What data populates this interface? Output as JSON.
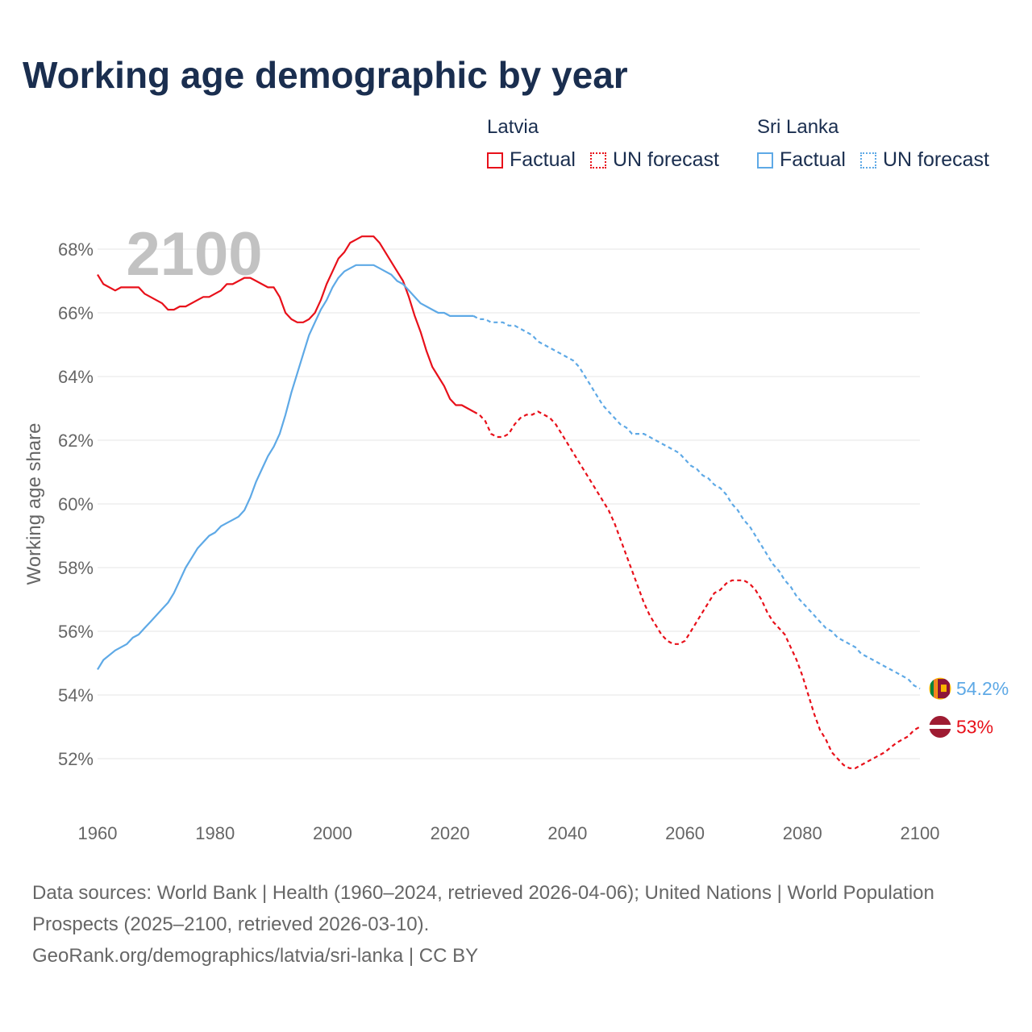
{
  "title": "Working age demographic by year",
  "year_label": "2100",
  "legend": {
    "groups": [
      {
        "country": "Latvia",
        "factual_label": "Factual",
        "forecast_label": "UN forecast",
        "color": "#e8101a"
      },
      {
        "country": "Sri Lanka",
        "factual_label": "Factual",
        "forecast_label": "UN forecast",
        "color": "#5ea9e6"
      }
    ]
  },
  "footer": {
    "sources": "Data sources: World Bank | Health (1960–2024, retrieved 2026-04-06); United Nations | World Population Prospects (2025–2100, retrieved 2026-03-10).",
    "credit": "GeoRank.org/demographics/latvia/sri-lanka | CC BY"
  },
  "chart_data": {
    "type": "line",
    "title": "Working age demographic by year",
    "ylabel": "Working age share",
    "xlabel": "",
    "xlim": [
      1960,
      2100
    ],
    "ylim": [
      51,
      69.5
    ],
    "x_ticks": [
      "1960",
      "1980",
      "2000",
      "2020",
      "2040",
      "2060",
      "2080",
      "2100"
    ],
    "y_ticks": [
      "52%",
      "54%",
      "56%",
      "58%",
      "60%",
      "62%",
      "64%",
      "66%",
      "68%"
    ],
    "grid": true,
    "factual_end_year": 2024,
    "series": [
      {
        "name": "Latvia",
        "color": "#e8101a",
        "end_label": "53%",
        "points": [
          [
            1960,
            67.2
          ],
          [
            1961,
            66.9
          ],
          [
            1963,
            66.7
          ],
          [
            1964,
            66.8
          ],
          [
            1967,
            66.8
          ],
          [
            1968,
            66.6
          ],
          [
            1971,
            66.3
          ],
          [
            1972,
            66.1
          ],
          [
            1973,
            66.1
          ],
          [
            1974,
            66.2
          ],
          [
            1975,
            66.2
          ],
          [
            1977,
            66.4
          ],
          [
            1978,
            66.5
          ],
          [
            1979,
            66.5
          ],
          [
            1981,
            66.7
          ],
          [
            1982,
            66.9
          ],
          [
            1983,
            66.9
          ],
          [
            1984,
            67.0
          ],
          [
            1985,
            67.1
          ],
          [
            1986,
            67.1
          ],
          [
            1987,
            67.0
          ],
          [
            1989,
            66.8
          ],
          [
            1990,
            66.8
          ],
          [
            1991,
            66.5
          ],
          [
            1992,
            66.0
          ],
          [
            1993,
            65.8
          ],
          [
            1994,
            65.7
          ],
          [
            1995,
            65.7
          ],
          [
            1996,
            65.8
          ],
          [
            1997,
            66.0
          ],
          [
            1998,
            66.4
          ],
          [
            1999,
            66.9
          ],
          [
            2000,
            67.3
          ],
          [
            2001,
            67.7
          ],
          [
            2002,
            67.9
          ],
          [
            2003,
            68.2
          ],
          [
            2004,
            68.3
          ],
          [
            2005,
            68.4
          ],
          [
            2007,
            68.4
          ],
          [
            2008,
            68.2
          ],
          [
            2009,
            67.9
          ],
          [
            2010,
            67.6
          ],
          [
            2011,
            67.3
          ],
          [
            2012,
            67.0
          ],
          [
            2013,
            66.5
          ],
          [
            2014,
            65.9
          ],
          [
            2015,
            65.4
          ],
          [
            2016,
            64.8
          ],
          [
            2017,
            64.3
          ],
          [
            2018,
            64.0
          ],
          [
            2019,
            63.7
          ],
          [
            2020,
            63.3
          ],
          [
            2021,
            63.1
          ],
          [
            2022,
            63.1
          ],
          [
            2023,
            63.0
          ],
          [
            2024,
            62.9
          ],
          [
            2025,
            62.8
          ],
          [
            2026,
            62.6
          ],
          [
            2027,
            62.2
          ],
          [
            2028,
            62.1
          ],
          [
            2029,
            62.1
          ],
          [
            2030,
            62.2
          ],
          [
            2031,
            62.5
          ],
          [
            2032,
            62.7
          ],
          [
            2033,
            62.8
          ],
          [
            2034,
            62.8
          ],
          [
            2035,
            62.9
          ],
          [
            2036,
            62.8
          ],
          [
            2037,
            62.7
          ],
          [
            2038,
            62.5
          ],
          [
            2039,
            62.2
          ],
          [
            2040,
            61.9
          ],
          [
            2042,
            61.3
          ],
          [
            2044,
            60.7
          ],
          [
            2046,
            60.1
          ],
          [
            2047,
            59.8
          ],
          [
            2048,
            59.4
          ],
          [
            2049,
            58.9
          ],
          [
            2050,
            58.4
          ],
          [
            2051,
            57.9
          ],
          [
            2052,
            57.4
          ],
          [
            2053,
            56.9
          ],
          [
            2054,
            56.5
          ],
          [
            2055,
            56.2
          ],
          [
            2056,
            55.9
          ],
          [
            2057,
            55.7
          ],
          [
            2058,
            55.6
          ],
          [
            2059,
            55.6
          ],
          [
            2060,
            55.7
          ],
          [
            2061,
            56.0
          ],
          [
            2062,
            56.3
          ],
          [
            2063,
            56.6
          ],
          [
            2064,
            56.9
          ],
          [
            2065,
            57.2
          ],
          [
            2066,
            57.3
          ],
          [
            2067,
            57.5
          ],
          [
            2068,
            57.6
          ],
          [
            2070,
            57.6
          ],
          [
            2071,
            57.5
          ],
          [
            2072,
            57.3
          ],
          [
            2073,
            57.0
          ],
          [
            2074,
            56.6
          ],
          [
            2075,
            56.3
          ],
          [
            2076,
            56.1
          ],
          [
            2077,
            55.9
          ],
          [
            2078,
            55.5
          ],
          [
            2079,
            55.1
          ],
          [
            2080,
            54.6
          ],
          [
            2081,
            54.0
          ],
          [
            2082,
            53.4
          ],
          [
            2083,
            52.9
          ],
          [
            2084,
            52.6
          ],
          [
            2085,
            52.2
          ],
          [
            2086,
            52.0
          ],
          [
            2087,
            51.8
          ],
          [
            2088,
            51.7
          ],
          [
            2089,
            51.7
          ],
          [
            2090,
            51.8
          ],
          [
            2092,
            52.0
          ],
          [
            2094,
            52.2
          ],
          [
            2096,
            52.5
          ],
          [
            2098,
            52.7
          ],
          [
            2099,
            52.9
          ],
          [
            2100,
            53.0
          ]
        ]
      },
      {
        "name": "Sri Lanka",
        "color": "#5ea9e6",
        "end_label": "54.2%",
        "points": [
          [
            1960,
            54.8
          ],
          [
            1961,
            55.1
          ],
          [
            1963,
            55.4
          ],
          [
            1965,
            55.6
          ],
          [
            1966,
            55.8
          ],
          [
            1967,
            55.9
          ],
          [
            1968,
            56.1
          ],
          [
            1969,
            56.3
          ],
          [
            1970,
            56.5
          ],
          [
            1971,
            56.7
          ],
          [
            1972,
            56.9
          ],
          [
            1973,
            57.2
          ],
          [
            1974,
            57.6
          ],
          [
            1975,
            58.0
          ],
          [
            1976,
            58.3
          ],
          [
            1977,
            58.6
          ],
          [
            1978,
            58.8
          ],
          [
            1979,
            59.0
          ],
          [
            1980,
            59.1
          ],
          [
            1981,
            59.3
          ],
          [
            1982,
            59.4
          ],
          [
            1983,
            59.5
          ],
          [
            1984,
            59.6
          ],
          [
            1985,
            59.8
          ],
          [
            1986,
            60.2
          ],
          [
            1987,
            60.7
          ],
          [
            1988,
            61.1
          ],
          [
            1989,
            61.5
          ],
          [
            1990,
            61.8
          ],
          [
            1991,
            62.2
          ],
          [
            1992,
            62.8
          ],
          [
            1993,
            63.5
          ],
          [
            1994,
            64.1
          ],
          [
            1995,
            64.7
          ],
          [
            1996,
            65.3
          ],
          [
            1997,
            65.7
          ],
          [
            1998,
            66.1
          ],
          [
            1999,
            66.4
          ],
          [
            2000,
            66.8
          ],
          [
            2001,
            67.1
          ],
          [
            2002,
            67.3
          ],
          [
            2003,
            67.4
          ],
          [
            2004,
            67.5
          ],
          [
            2007,
            67.5
          ],
          [
            2008,
            67.4
          ],
          [
            2009,
            67.3
          ],
          [
            2010,
            67.2
          ],
          [
            2011,
            67.0
          ],
          [
            2012,
            66.9
          ],
          [
            2013,
            66.7
          ],
          [
            2014,
            66.5
          ],
          [
            2015,
            66.3
          ],
          [
            2016,
            66.2
          ],
          [
            2017,
            66.1
          ],
          [
            2018,
            66.0
          ],
          [
            2019,
            66.0
          ],
          [
            2020,
            65.9
          ],
          [
            2024,
            65.9
          ],
          [
            2025,
            65.8
          ],
          [
            2026,
            65.8
          ],
          [
            2027,
            65.7
          ],
          [
            2029,
            65.7
          ],
          [
            2030,
            65.6
          ],
          [
            2031,
            65.6
          ],
          [
            2032,
            65.5
          ],
          [
            2034,
            65.3
          ],
          [
            2035,
            65.1
          ],
          [
            2037,
            64.9
          ],
          [
            2039,
            64.7
          ],
          [
            2041,
            64.5
          ],
          [
            2042,
            64.3
          ],
          [
            2043,
            64.0
          ],
          [
            2044,
            63.7
          ],
          [
            2045,
            63.4
          ],
          [
            2046,
            63.1
          ],
          [
            2047,
            62.9
          ],
          [
            2048,
            62.7
          ],
          [
            2049,
            62.5
          ],
          [
            2050,
            62.4
          ],
          [
            2051,
            62.2
          ],
          [
            2053,
            62.2
          ],
          [
            2055,
            62.0
          ],
          [
            2057,
            61.8
          ],
          [
            2059,
            61.6
          ],
          [
            2060,
            61.4
          ],
          [
            2061,
            61.2
          ],
          [
            2062,
            61.1
          ],
          [
            2063,
            60.9
          ],
          [
            2064,
            60.8
          ],
          [
            2065,
            60.6
          ],
          [
            2066,
            60.5
          ],
          [
            2067,
            60.3
          ],
          [
            2068,
            60.0
          ],
          [
            2069,
            59.8
          ],
          [
            2070,
            59.5
          ],
          [
            2071,
            59.3
          ],
          [
            2072,
            59.0
          ],
          [
            2073,
            58.7
          ],
          [
            2074,
            58.4
          ],
          [
            2075,
            58.1
          ],
          [
            2076,
            57.9
          ],
          [
            2077,
            57.6
          ],
          [
            2078,
            57.4
          ],
          [
            2079,
            57.1
          ],
          [
            2080,
            56.9
          ],
          [
            2081,
            56.7
          ],
          [
            2082,
            56.5
          ],
          [
            2083,
            56.3
          ],
          [
            2084,
            56.1
          ],
          [
            2085,
            56.0
          ],
          [
            2086,
            55.8
          ],
          [
            2087,
            55.7
          ],
          [
            2088,
            55.6
          ],
          [
            2089,
            55.5
          ],
          [
            2090,
            55.3
          ],
          [
            2091,
            55.2
          ],
          [
            2092,
            55.1
          ],
          [
            2093,
            55.0
          ],
          [
            2094,
            54.9
          ],
          [
            2095,
            54.8
          ],
          [
            2096,
            54.7
          ],
          [
            2097,
            54.6
          ],
          [
            2098,
            54.5
          ],
          [
            2099,
            54.3
          ],
          [
            2100,
            54.2
          ]
        ]
      }
    ]
  }
}
